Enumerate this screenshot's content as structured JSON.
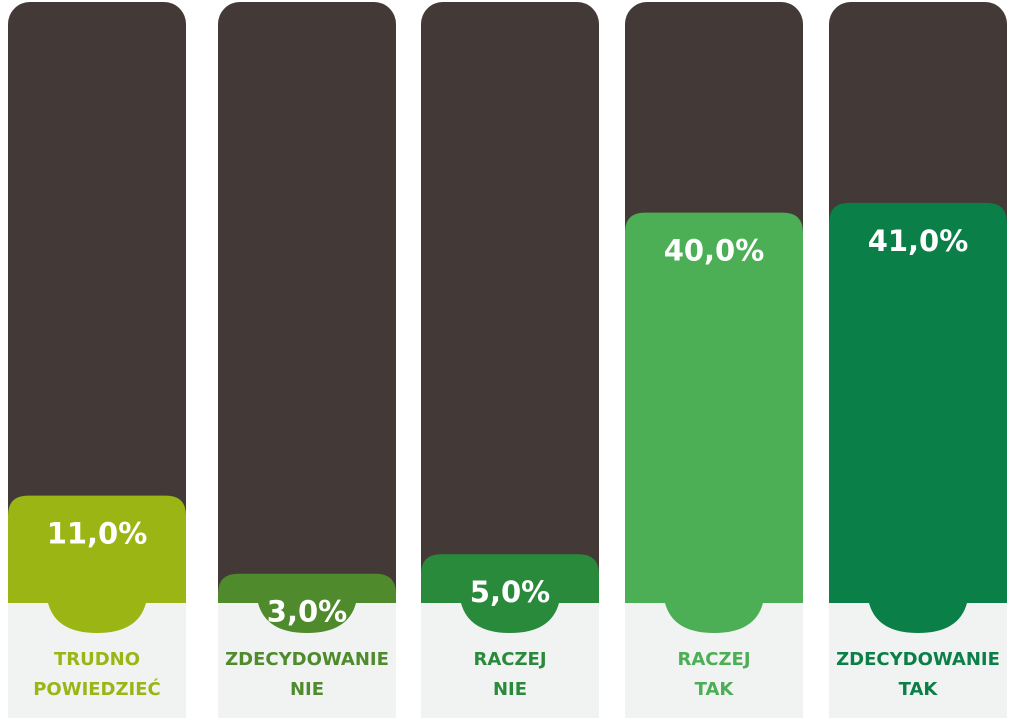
{
  "chart_data": {
    "type": "bar",
    "categories": [
      "TRUDNO\nPOWIEDZIEĆ",
      "ZDECYDOWANIE\nNIE",
      "RACZEJ\nNIE",
      "RACZEJ\nTAK",
      "ZDECYDOWANIE\nTAK"
    ],
    "values": [
      11,
      3,
      5,
      40,
      41
    ],
    "value_labels": [
      "11,0%",
      "3,0%",
      "5,0%",
      "40,0%",
      "41,0%"
    ],
    "colors": [
      "#9bb514",
      "#4f8a2c",
      "#2a8a3c",
      "#4cae55",
      "#0b7f48"
    ]
  }
}
